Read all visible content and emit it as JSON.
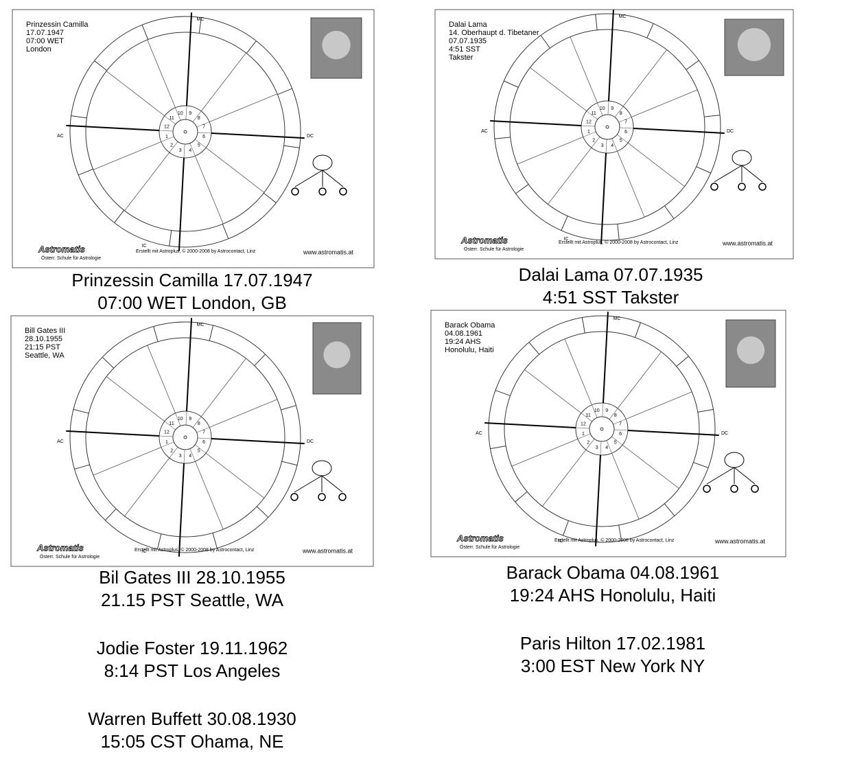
{
  "panels": [
    {
      "header": [
        "Prinzessin Camilla",
        "17.07.1947",
        "07:00 WET",
        "London"
      ],
      "caption": [
        "Prinzessin Camilla 17.07.1947",
        "07:00 WET London, GB"
      ]
    },
    {
      "header": [
        "Dalai Lama",
        "14. Oberhaupt d. Tibetaner",
        "07.07.1935",
        "4:51 SST",
        "Takster"
      ],
      "caption": [
        "Dalai Lama 07.07.1935",
        "4:51 SST Takster"
      ]
    },
    {
      "header": [
        "Bill Gates III",
        "28.10.1955",
        "21:15 PST",
        "Seattle, WA"
      ],
      "caption": [
        "Bil Gates III  28.10.1955",
        "21.15 PST  Seattle, WA"
      ]
    },
    {
      "header": [
        "Barack Obama",
        "04.08.1961",
        "19:24 AHS",
        "Honolulu, Haiti"
      ],
      "caption": [
        "Barack Obama 04.08.1961",
        "19:24 AHS Honolulu, Haiti"
      ]
    }
  ],
  "footer": {
    "logo": "Astromatis",
    "school": "Österr. Schule für Astrologie",
    "credit": "Erstellt mit Astroplus, © 2000-2008 by Astrocontact, Linz",
    "url": "www.astromatis.at"
  },
  "house_numbers": [
    "1",
    "2",
    "3",
    "4",
    "5",
    "6",
    "7",
    "8",
    "9",
    "10",
    "11",
    "12"
  ],
  "angles": [
    "AC",
    "DC",
    "MC",
    "IC"
  ],
  "extra_captions": [
    {
      "column": 0,
      "lines": [
        "Jodie Foster 19.11.1962",
        "8:14 PST Los Angeles"
      ]
    },
    {
      "column": 0,
      "lines": [
        "Warren Buffett 30.08.1930",
        "15:05 CST Ohama, NE"
      ]
    },
    {
      "column": 1,
      "lines": [
        "Paris Hilton 17.02.1981",
        "3:00 EST New York NY"
      ]
    }
  ]
}
